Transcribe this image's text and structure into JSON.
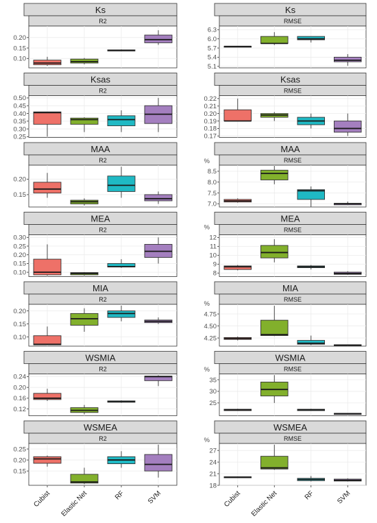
{
  "colors": {
    "Cubist": "#ee7168",
    "Elastic Net": "#82b02c",
    "RF": "#1fb9c4",
    "SVM": "#a47fbf",
    "strip_bg": "#d9d9d9",
    "grid": "#ebebeb",
    "panel_border": "#333333"
  },
  "chart_data": [
    {
      "type": "box",
      "title": "Ks",
      "subtitle": "R2",
      "unit": "",
      "yticks": [
        0.1,
        0.15,
        0.2
      ],
      "yticklabels": [
        "0.10",
        "0.15",
        "0.20"
      ],
      "ylim": [
        0.055,
        0.255
      ],
      "categories": [
        "Cubist",
        "Elastic Net",
        "RF",
        "SVM"
      ],
      "boxes": [
        {
          "min": 0.065,
          "q1": 0.07,
          "median": 0.078,
          "q3": 0.092,
          "max": 0.108
        },
        {
          "min": 0.072,
          "q1": 0.078,
          "median": 0.085,
          "q3": 0.097,
          "max": 0.102
        },
        {
          "min": 0.135,
          "q1": 0.136,
          "median": 0.138,
          "q3": 0.141,
          "max": 0.143
        },
        {
          "min": 0.165,
          "q1": 0.175,
          "median": 0.19,
          "q3": 0.212,
          "max": 0.235
        }
      ]
    },
    {
      "type": "box",
      "title": "Ks",
      "subtitle": "RMSE",
      "unit": "",
      "yticks": [
        5.1,
        5.4,
        5.7,
        6.0,
        6.3
      ],
      "yticklabels": [
        "5.1",
        "5.4",
        "5.7",
        "6.0",
        "6.3"
      ],
      "ylim": [
        5.05,
        6.42
      ],
      "categories": [
        "Cubist",
        "Elastic Net",
        "RF",
        "SVM"
      ],
      "boxes": [
        {
          "min": 5.74,
          "q1": 5.74,
          "median": 5.75,
          "q3": 5.76,
          "max": 5.76
        },
        {
          "min": 5.8,
          "q1": 5.85,
          "median": 5.85,
          "q3": 6.08,
          "max": 6.22
        },
        {
          "min": 5.88,
          "q1": 5.97,
          "median": 6.0,
          "q3": 6.08,
          "max": 6.08
        },
        {
          "min": 5.12,
          "q1": 5.25,
          "median": 5.3,
          "q3": 5.4,
          "max": 5.5
        }
      ]
    },
    {
      "type": "box",
      "title": "Ksas",
      "subtitle": "R2",
      "unit": "",
      "yticks": [
        0.25,
        0.3,
        0.35,
        0.4,
        0.45,
        0.5
      ],
      "yticklabels": [
        "0.25",
        "0.30",
        "0.35",
        "0.40",
        "0.45",
        "0.50"
      ],
      "ylim": [
        0.245,
        0.515
      ],
      "categories": [
        "Cubist",
        "Elastic Net",
        "RF",
        "SVM"
      ],
      "boxes": [
        {
          "min": 0.25,
          "q1": 0.33,
          "median": 0.405,
          "q3": 0.41,
          "max": 0.41
        },
        {
          "min": 0.28,
          "q1": 0.33,
          "median": 0.36,
          "q3": 0.37,
          "max": 0.375
        },
        {
          "min": 0.28,
          "q1": 0.32,
          "median": 0.36,
          "q3": 0.385,
          "max": 0.42
        },
        {
          "min": 0.28,
          "q1": 0.335,
          "median": 0.395,
          "q3": 0.45,
          "max": 0.5
        }
      ]
    },
    {
      "type": "box",
      "title": "Ksas",
      "subtitle": "RMSE",
      "unit": "",
      "yticks": [
        0.17,
        0.18,
        0.19,
        0.2,
        0.21,
        0.22
      ],
      "yticklabels": [
        "0.17",
        "0.18",
        "0.19",
        "0.20",
        "0.21",
        "0.22"
      ],
      "ylim": [
        0.168,
        0.224
      ],
      "categories": [
        "Cubist",
        "Elastic Net",
        "RF",
        "SVM"
      ],
      "boxes": [
        {
          "min": 0.19,
          "q1": 0.19,
          "median": 0.19,
          "q3": 0.205,
          "max": 0.22
        },
        {
          "min": 0.19,
          "q1": 0.195,
          "median": 0.198,
          "q3": 0.2,
          "max": 0.202
        },
        {
          "min": 0.18,
          "q1": 0.185,
          "median": 0.19,
          "q3": 0.195,
          "max": 0.2
        },
        {
          "min": 0.17,
          "q1": 0.175,
          "median": 0.18,
          "q3": 0.19,
          "max": 0.2
        }
      ]
    },
    {
      "type": "box",
      "title": "MAA",
      "subtitle": "R2",
      "unit": "",
      "yticks": [
        0.15,
        0.2
      ],
      "yticklabels": [
        "0.15",
        "0.20"
      ],
      "ylim": [
        0.11,
        0.245
      ],
      "categories": [
        "Cubist",
        "Elastic Net",
        "RF",
        "SVM"
      ],
      "boxes": [
        {
          "min": 0.14,
          "q1": 0.155,
          "median": 0.168,
          "q3": 0.19,
          "max": 0.22
        },
        {
          "min": 0.115,
          "q1": 0.12,
          "median": 0.127,
          "q3": 0.132,
          "max": 0.138
        },
        {
          "min": 0.14,
          "q1": 0.16,
          "median": 0.18,
          "q3": 0.21,
          "max": 0.24
        },
        {
          "min": 0.12,
          "q1": 0.13,
          "median": 0.137,
          "q3": 0.15,
          "max": 0.16
        }
      ]
    },
    {
      "type": "box",
      "title": "MAA",
      "subtitle": "RMSE",
      "unit": "%",
      "yticks": [
        7.0,
        7.5,
        8.0,
        8.5
      ],
      "yticklabels": [
        "7.0",
        "7.5",
        "8.0",
        "8.5"
      ],
      "ylim": [
        6.85,
        8.78
      ],
      "categories": [
        "Cubist",
        "Elastic Net",
        "RF",
        "SVM"
      ],
      "boxes": [
        {
          "min": 7.05,
          "q1": 7.08,
          "median": 7.13,
          "q3": 7.2,
          "max": 7.25
        },
        {
          "min": 7.9,
          "q1": 8.1,
          "median": 8.4,
          "q3": 8.55,
          "max": 8.75
        },
        {
          "min": 6.85,
          "q1": 7.2,
          "median": 7.6,
          "q3": 7.65,
          "max": 7.8
        },
        {
          "min": 6.95,
          "q1": 6.95,
          "median": 7.0,
          "q3": 7.02,
          "max": 7.1
        }
      ]
    },
    {
      "type": "box",
      "title": "MEA",
      "subtitle": "R2",
      "unit": "",
      "yticks": [
        0.1,
        0.15,
        0.2,
        0.25,
        0.3
      ],
      "yticklabels": [
        "0.10",
        "0.15",
        "0.20",
        "0.25",
        "0.30"
      ],
      "ylim": [
        0.075,
        0.315
      ],
      "categories": [
        "Cubist",
        "Elastic Net",
        "RF",
        "SVM"
      ],
      "boxes": [
        {
          "min": 0.08,
          "q1": 0.085,
          "median": 0.1,
          "q3": 0.175,
          "max": 0.26
        },
        {
          "min": 0.08,
          "q1": 0.085,
          "median": 0.093,
          "q3": 0.098,
          "max": 0.1
        },
        {
          "min": 0.125,
          "q1": 0.13,
          "median": 0.132,
          "q3": 0.15,
          "max": 0.175
        },
        {
          "min": 0.15,
          "q1": 0.185,
          "median": 0.22,
          "q3": 0.26,
          "max": 0.3
        }
      ]
    },
    {
      "type": "box",
      "title": "MEA",
      "subtitle": "RMSE",
      "unit": "%",
      "yticks": [
        8,
        9,
        10,
        11,
        12
      ],
      "yticklabels": [
        "8",
        "9",
        "10",
        "11",
        "12"
      ],
      "ylim": [
        7.6,
        12.3
      ],
      "categories": [
        "Cubist",
        "Elastic Net",
        "RF",
        "SVM"
      ],
      "boxes": [
        {
          "min": 8.3,
          "q1": 8.4,
          "median": 8.7,
          "q3": 8.8,
          "max": 8.9
        },
        {
          "min": 9.2,
          "q1": 9.7,
          "median": 10.3,
          "q3": 11.1,
          "max": 11.8
        },
        {
          "min": 8.4,
          "q1": 8.6,
          "median": 8.7,
          "q3": 8.8,
          "max": 8.9
        },
        {
          "min": 7.8,
          "q1": 7.85,
          "median": 7.95,
          "q3": 8.1,
          "max": 8.2
        }
      ]
    },
    {
      "type": "box",
      "title": "MIA",
      "subtitle": "R2",
      "unit": "",
      "yticks": [
        0.1,
        0.15,
        0.2
      ],
      "yticklabels": [
        "0.10",
        "0.15",
        "0.20"
      ],
      "ylim": [
        0.065,
        0.225
      ],
      "categories": [
        "Cubist",
        "Elastic Net",
        "RF",
        "SVM"
      ],
      "boxes": [
        {
          "min": 0.07,
          "q1": 0.07,
          "median": 0.072,
          "q3": 0.105,
          "max": 0.14
        },
        {
          "min": 0.12,
          "q1": 0.145,
          "median": 0.17,
          "q3": 0.19,
          "max": 0.21
        },
        {
          "min": 0.16,
          "q1": 0.175,
          "median": 0.19,
          "q3": 0.2,
          "max": 0.22
        },
        {
          "min": 0.15,
          "q1": 0.155,
          "median": 0.16,
          "q3": 0.165,
          "max": 0.175
        }
      ]
    },
    {
      "type": "box",
      "title": "MIA",
      "subtitle": "RMSE",
      "unit": "%",
      "yticks": [
        4.25,
        4.5,
        4.75
      ],
      "yticklabels": [
        "4.25",
        "4.50",
        "4.75"
      ],
      "ylim": [
        4.08,
        4.95
      ],
      "categories": [
        "Cubist",
        "Elastic Net",
        "RF",
        "SVM"
      ],
      "boxes": [
        {
          "min": 4.2,
          "q1": 4.22,
          "median": 4.24,
          "q3": 4.26,
          "max": 4.28
        },
        {
          "min": 4.29,
          "q1": 4.3,
          "median": 4.32,
          "q3": 4.62,
          "max": 4.92
        },
        {
          "min": 4.1,
          "q1": 4.12,
          "median": 4.14,
          "q3": 4.2,
          "max": 4.3
        },
        {
          "min": 4.09,
          "q1": 4.1,
          "median": 4.1,
          "q3": 4.11,
          "max": 4.11
        }
      ]
    },
    {
      "type": "box",
      "title": "WSMIA",
      "subtitle": "R2",
      "unit": "",
      "yticks": [
        0.12,
        0.16,
        0.2,
        0.24
      ],
      "yticklabels": [
        "0.12",
        "0.16",
        "0.20",
        "0.24"
      ],
      "ylim": [
        0.095,
        0.25
      ],
      "categories": [
        "Cubist",
        "Elastic Net",
        "RF",
        "SVM"
      ],
      "boxes": [
        {
          "min": 0.15,
          "q1": 0.155,
          "median": 0.16,
          "q3": 0.178,
          "max": 0.195
        },
        {
          "min": 0.1,
          "q1": 0.107,
          "median": 0.115,
          "q3": 0.125,
          "max": 0.135
        },
        {
          "min": 0.143,
          "q1": 0.145,
          "median": 0.147,
          "q3": 0.15,
          "max": 0.152
        },
        {
          "min": 0.205,
          "q1": 0.225,
          "median": 0.24,
          "q3": 0.242,
          "max": 0.245
        }
      ]
    },
    {
      "type": "box",
      "title": "WSMIA",
      "subtitle": "RMSE",
      "unit": "%",
      "yticks": [
        25,
        30,
        35
      ],
      "yticklabels": [
        "25",
        "30",
        "35"
      ],
      "ylim": [
        19.5,
        37.5
      ],
      "categories": [
        "Cubist",
        "Elastic Net",
        "RF",
        "SVM"
      ],
      "boxes": [
        {
          "min": 21.6,
          "q1": 21.7,
          "median": 22.0,
          "q3": 22.3,
          "max": 22.5
        },
        {
          "min": 25,
          "q1": 28,
          "median": 30.8,
          "q3": 34,
          "max": 37
        },
        {
          "min": 21.6,
          "q1": 21.7,
          "median": 22.0,
          "q3": 22.3,
          "max": 22.5
        },
        {
          "min": 20.2,
          "q1": 20.3,
          "median": 20.4,
          "q3": 20.5,
          "max": 20.6
        }
      ]
    },
    {
      "type": "box",
      "title": "WSMEA",
      "subtitle": "R2",
      "unit": "",
      "yticks": [
        0.15,
        0.2,
        0.25
      ],
      "yticklabels": [
        "0.15",
        "0.20",
        "0.25"
      ],
      "ylim": [
        0.085,
        0.275
      ],
      "categories": [
        "Cubist",
        "Elastic Net",
        "RF",
        "SVM"
      ],
      "boxes": [
        {
          "min": 0.17,
          "q1": 0.185,
          "median": 0.205,
          "q3": 0.215,
          "max": 0.22
        },
        {
          "min": 0.09,
          "q1": 0.095,
          "median": 0.1,
          "q3": 0.135,
          "max": 0.165
        },
        {
          "min": 0.165,
          "q1": 0.183,
          "median": 0.2,
          "q3": 0.215,
          "max": 0.24
        },
        {
          "min": 0.12,
          "q1": 0.15,
          "median": 0.18,
          "q3": 0.225,
          "max": 0.27
        }
      ]
    },
    {
      "type": "box",
      "title": "WSMEA",
      "subtitle": "RMSE",
      "unit": "%",
      "yticks": [
        18,
        21,
        24,
        27
      ],
      "yticklabels": [
        "18",
        "21",
        "24",
        "27"
      ],
      "ylim": [
        18,
        28.8
      ],
      "categories": [
        "Cubist",
        "Elastic Net",
        "RF",
        "SVM"
      ],
      "boxes": [
        {
          "min": 19.9,
          "q1": 20.0,
          "median": 20.1,
          "q3": 20.2,
          "max": 20.3
        },
        {
          "min": 22,
          "q1": 22.2,
          "median": 22.5,
          "q3": 25.5,
          "max": 28.5
        },
        {
          "min": 19.0,
          "q1": 19.2,
          "median": 19.5,
          "q3": 19.8,
          "max": 20.4
        },
        {
          "min": 19.0,
          "q1": 19.1,
          "median": 19.3,
          "q3": 19.6,
          "max": 19.8
        }
      ]
    }
  ]
}
